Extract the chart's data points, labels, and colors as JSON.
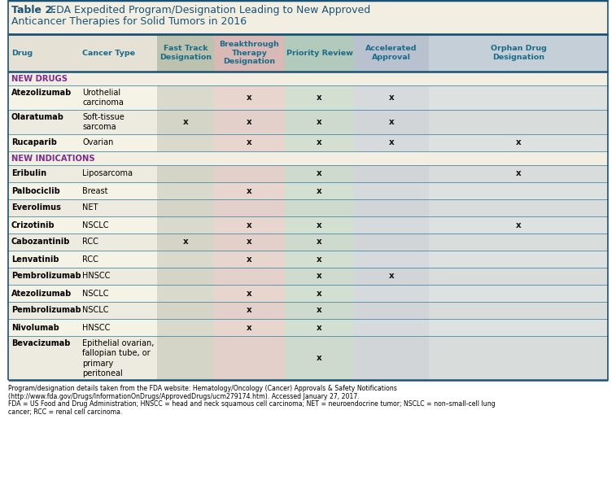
{
  "title_bold": "Table 2.",
  "title_rest": " FDA Expedited Program/Designation Leading to New Approved\nAnticancer Therapies for Solid Tumors in 2016",
  "title_color": "#1a5276",
  "col_headers": [
    "Drug",
    "Cancer Type",
    "Fast Track\nDesignation",
    "Breakthrough\nTherapy\nDesignation",
    "Priority Review",
    "Accelerated\nApproval",
    "Orphan Drug\nDesignation"
  ],
  "col_header_color": "#1a6b8a",
  "section_color": "#7b2d8b",
  "rows": [
    {
      "drug": "Atezolizumab",
      "cancer": "Urothelial\ncarcinoma",
      "fast": false,
      "breakthrough": true,
      "priority": true,
      "accelerated": true,
      "orphan": false,
      "section": "NEW DRUGS"
    },
    {
      "drug": "Olaratumab",
      "cancer": "Soft-tissue\nsarcoma",
      "fast": true,
      "breakthrough": true,
      "priority": true,
      "accelerated": true,
      "orphan": false,
      "section": "NEW DRUGS"
    },
    {
      "drug": "Rucaparib",
      "cancer": "Ovarian",
      "fast": false,
      "breakthrough": true,
      "priority": true,
      "accelerated": true,
      "orphan": true,
      "section": "NEW DRUGS"
    },
    {
      "drug": "Eribulin",
      "cancer": "Liposarcoma",
      "fast": false,
      "breakthrough": false,
      "priority": true,
      "accelerated": false,
      "orphan": true,
      "section": "NEW INDICATIONS"
    },
    {
      "drug": "Palbociclib",
      "cancer": "Breast",
      "fast": false,
      "breakthrough": true,
      "priority": true,
      "accelerated": false,
      "orphan": false,
      "section": "NEW INDICATIONS"
    },
    {
      "drug": "Everolimus",
      "cancer": "NET",
      "fast": false,
      "breakthrough": false,
      "priority": false,
      "accelerated": false,
      "orphan": false,
      "section": "NEW INDICATIONS"
    },
    {
      "drug": "Crizotinib",
      "cancer": "NSCLC",
      "fast": false,
      "breakthrough": true,
      "priority": true,
      "accelerated": false,
      "orphan": true,
      "section": "NEW INDICATIONS"
    },
    {
      "drug": "Cabozantinib",
      "cancer": "RCC",
      "fast": true,
      "breakthrough": true,
      "priority": true,
      "accelerated": false,
      "orphan": false,
      "section": "NEW INDICATIONS"
    },
    {
      "drug": "Lenvatinib",
      "cancer": "RCC",
      "fast": false,
      "breakthrough": true,
      "priority": true,
      "accelerated": false,
      "orphan": false,
      "section": "NEW INDICATIONS"
    },
    {
      "drug": "Pembrolizumab",
      "cancer": "HNSCC",
      "fast": false,
      "breakthrough": false,
      "priority": true,
      "accelerated": true,
      "orphan": false,
      "section": "NEW INDICATIONS"
    },
    {
      "drug": "Atezolizumab",
      "cancer": "NSCLC",
      "fast": false,
      "breakthrough": true,
      "priority": true,
      "accelerated": false,
      "orphan": false,
      "section": "NEW INDICATIONS"
    },
    {
      "drug": "Pembrolizumab",
      "cancer": "NSCLC",
      "fast": false,
      "breakthrough": true,
      "priority": true,
      "accelerated": false,
      "orphan": false,
      "section": "NEW INDICATIONS"
    },
    {
      "drug": "Nivolumab",
      "cancer": "HNSCC",
      "fast": false,
      "breakthrough": true,
      "priority": true,
      "accelerated": false,
      "orphan": false,
      "section": "NEW INDICATIONS"
    },
    {
      "drug": "Bevacizumab",
      "cancer": "Epithelial ovarian,\nfallopian tube, or\nprimary\nperitoneal",
      "fast": false,
      "breakthrough": false,
      "priority": true,
      "accelerated": false,
      "orphan": false,
      "section": "NEW INDICATIONS"
    }
  ],
  "col_colors": {
    "fast": "#adb5a0",
    "breakthrough": "#d4a8a8",
    "priority": "#9dc0b0",
    "accelerated": "#a8b4cc",
    "orphan": "#b8c8d8"
  },
  "bg_light": "#f2efe2",
  "header_bg": "#e5e2d5",
  "border_color_dark": "#1a5276",
  "border_color_light": "#4a8aaa",
  "section_bg": "#f2efe2",
  "footnote": "Program/designation details taken from the FDA website: Hematology/Oncology (Cancer) Approvals & Safety Notifications\n(http://www.fda.gov/Drugs/InformationOnDrugs/ApprovedDrugs/ucm279174.htm). Accessed January 27, 2017.\nFDA = US Food and Drug Administration; HNSCC = head and neck squamous cell carcinoma; NET = neuroendocrine tumor; NSCLC = non–small-cell lung\ncancer; RCC = renal cell carcinoma."
}
